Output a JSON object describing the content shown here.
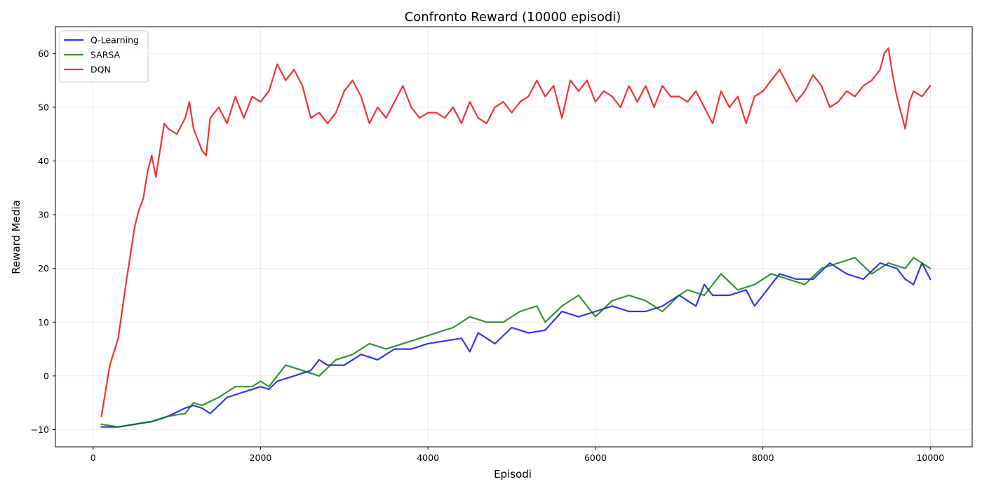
{
  "chart_data": {
    "type": "line",
    "title": "Confronto Reward (10000 episodi)",
    "xlabel": "Episodi",
    "ylabel": "Reward Media",
    "xlim": [
      -450,
      10500
    ],
    "ylim": [
      -13.2,
      65
    ],
    "xticks": [
      0,
      2000,
      4000,
      6000,
      8000,
      10000
    ],
    "xtick_labels": [
      "0",
      "2000",
      "4000",
      "6000",
      "8000",
      "10000"
    ],
    "yticks": [
      -10,
      0,
      10,
      20,
      30,
      40,
      50,
      60
    ],
    "ytick_labels": [
      "−10",
      "0",
      "10",
      "20",
      "30",
      "40",
      "50",
      "60"
    ],
    "grid": true,
    "legend_position": "top-left",
    "series": [
      {
        "name": "Q-Learning",
        "color": "#0000ee",
        "x": [
          100,
          300,
          500,
          700,
          900,
          1100,
          1200,
          1300,
          1400,
          1600,
          1800,
          2000,
          2100,
          2200,
          2400,
          2600,
          2700,
          2800,
          3000,
          3200,
          3400,
          3600,
          3800,
          4000,
          4200,
          4400,
          4500,
          4600,
          4800,
          5000,
          5200,
          5400,
          5600,
          5800,
          6000,
          6200,
          6400,
          6600,
          6800,
          7000,
          7100,
          7200,
          7300,
          7400,
          7600,
          7800,
          7900,
          8000,
          8200,
          8400,
          8600,
          8800,
          9000,
          9200,
          9400,
          9600,
          9700,
          9800,
          9900,
          10000
        ],
        "y": [
          -9.5,
          -9.5,
          -9,
          -8.5,
          -7.5,
          -6,
          -5.5,
          -6,
          -7,
          -4,
          -3,
          -2,
          -2.5,
          -1,
          0,
          1,
          3,
          2,
          2,
          4,
          3,
          5,
          5,
          6,
          6.5,
          7,
          4.5,
          8,
          6,
          9,
          8,
          8.5,
          12,
          11,
          12,
          13,
          12,
          12,
          13,
          15,
          14,
          13,
          17,
          15,
          15,
          16,
          13,
          15,
          19,
          18,
          18,
          21,
          19,
          18,
          21,
          20,
          18,
          17,
          21,
          18
        ]
      },
      {
        "name": "SARSA",
        "color": "#007700",
        "x": [
          100,
          300,
          500,
          700,
          900,
          1100,
          1200,
          1300,
          1500,
          1700,
          1900,
          2000,
          2100,
          2300,
          2500,
          2700,
          2900,
          3100,
          3300,
          3500,
          3700,
          3900,
          4100,
          4300,
          4500,
          4700,
          4900,
          5100,
          5300,
          5400,
          5600,
          5800,
          6000,
          6200,
          6400,
          6600,
          6800,
          7000,
          7100,
          7300,
          7500,
          7700,
          7900,
          8100,
          8300,
          8500,
          8700,
          8900,
          9100,
          9300,
          9500,
          9700,
          9800,
          9900,
          10000
        ],
        "y": [
          -9,
          -9.5,
          -9,
          -8.5,
          -7.5,
          -7,
          -5,
          -5.5,
          -4,
          -2,
          -2,
          -1,
          -2,
          2,
          1,
          0,
          3,
          4,
          6,
          5,
          6,
          7,
          8,
          9,
          11,
          10,
          10,
          12,
          13,
          10,
          13,
          15,
          11,
          14,
          15,
          14,
          12,
          15,
          16,
          15,
          19,
          16,
          17,
          19,
          18,
          17,
          20,
          21,
          22,
          19,
          21,
          20,
          22,
          21,
          20
        ]
      },
      {
        "name": "DQN",
        "color": "#ee0000",
        "x": [
          100,
          200,
          300,
          400,
          500,
          550,
          600,
          650,
          700,
          750,
          800,
          850,
          900,
          1000,
          1100,
          1150,
          1200,
          1300,
          1350,
          1400,
          1500,
          1600,
          1700,
          1800,
          1900,
          2000,
          2100,
          2200,
          2300,
          2400,
          2500,
          2600,
          2700,
          2800,
          2900,
          3000,
          3100,
          3200,
          3300,
          3400,
          3500,
          3600,
          3700,
          3800,
          3900,
          4000,
          4100,
          4200,
          4300,
          4400,
          4500,
          4600,
          4700,
          4800,
          4900,
          5000,
          5100,
          5200,
          5300,
          5400,
          5500,
          5600,
          5700,
          5800,
          5900,
          6000,
          6100,
          6200,
          6300,
          6400,
          6500,
          6600,
          6700,
          6800,
          6900,
          7000,
          7100,
          7200,
          7300,
          7400,
          7500,
          7600,
          7700,
          7800,
          7900,
          8000,
          8100,
          8200,
          8300,
          8400,
          8500,
          8600,
          8700,
          8800,
          8900,
          9000,
          9100,
          9200,
          9300,
          9400,
          9450,
          9500,
          9550,
          9600,
          9650,
          9700,
          9750,
          9800,
          9900,
          10000
        ],
        "y": [
          -7.5,
          2,
          7,
          18,
          28,
          31,
          33,
          38,
          41,
          37,
          42,
          47,
          46,
          45,
          48,
          51,
          46,
          42,
          41,
          48,
          50,
          47,
          52,
          48,
          52,
          51,
          53,
          58,
          55,
          57,
          54,
          48,
          49,
          47,
          49,
          53,
          55,
          52,
          47,
          50,
          48,
          51,
          54,
          50,
          48,
          49,
          49,
          48,
          50,
          47,
          51,
          48,
          47,
          50,
          51,
          49,
          51,
          52,
          55,
          52,
          54,
          48,
          55,
          53,
          55,
          51,
          53,
          52,
          50,
          54,
          51,
          54,
          50,
          54,
          52,
          52,
          51,
          53,
          50,
          47,
          53,
          50,
          52,
          47,
          52,
          53,
          55,
          57,
          54,
          51,
          53,
          56,
          54,
          50,
          51,
          53,
          52,
          54,
          55,
          57,
          60,
          61,
          56,
          52,
          49,
          46,
          51,
          53,
          52,
          54
        ]
      }
    ]
  }
}
